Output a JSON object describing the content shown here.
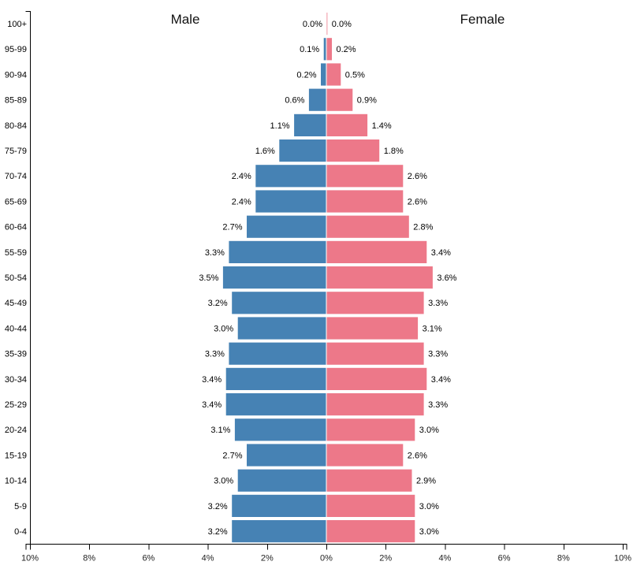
{
  "chart_data": {
    "type": "bar",
    "subtype": "population-pyramid",
    "orientation": "horizontal",
    "grid": false,
    "legend_position": "top-inside-titles",
    "categories": [
      "100+",
      "95-99",
      "90-94",
      "85-89",
      "80-84",
      "75-79",
      "70-74",
      "65-69",
      "60-64",
      "55-59",
      "50-54",
      "45-49",
      "40-44",
      "35-39",
      "30-34",
      "25-29",
      "20-24",
      "15-19",
      "10-14",
      "5-9",
      "0-4"
    ],
    "series": [
      {
        "name": "Male",
        "side": "left",
        "color": "#4682B4",
        "values": [
          0.0,
          0.1,
          0.2,
          0.6,
          1.1,
          1.6,
          2.4,
          2.4,
          2.7,
          3.3,
          3.5,
          3.2,
          3.0,
          3.3,
          3.4,
          3.4,
          3.1,
          2.7,
          3.0,
          3.2,
          3.2
        ]
      },
      {
        "name": "Female",
        "side": "right",
        "color": "#ED7889",
        "values": [
          0.0,
          0.2,
          0.5,
          0.9,
          1.4,
          1.8,
          2.6,
          2.6,
          2.8,
          3.4,
          3.6,
          3.3,
          3.1,
          3.3,
          3.4,
          3.3,
          3.0,
          2.6,
          2.9,
          3.0,
          3.0
        ]
      }
    ],
    "value_label_suffix": "%",
    "value_label_decimals": 1,
    "x_axis": {
      "tick_labels": [
        "10%",
        "8%",
        "6%",
        "4%",
        "2%",
        "0%",
        "2%",
        "4%",
        "6%",
        "8%",
        "10%"
      ],
      "max_percent": 10
    },
    "xlim": [
      -10,
      10
    ],
    "ylabel": "",
    "xlabel": ""
  },
  "colors": {
    "male_bar": "#4682B4",
    "female_bar": "#ED7889",
    "axis": "#000000",
    "text": "#000000",
    "background": "#FFFFFF"
  }
}
